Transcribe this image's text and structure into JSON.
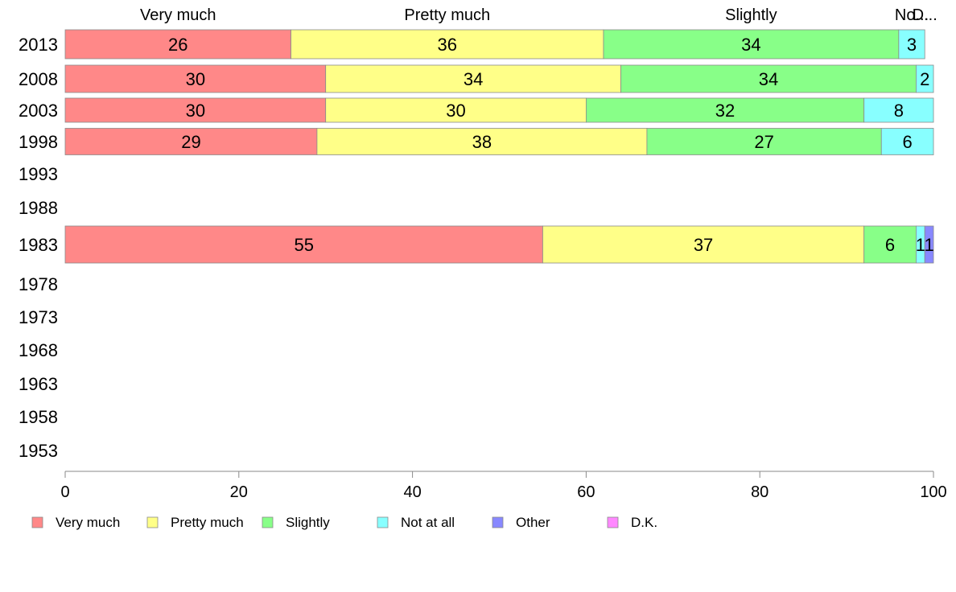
{
  "chart_data": {
    "type": "bar",
    "orientation": "horizontal",
    "stacked": true,
    "years": [
      "2013",
      "2008",
      "2003",
      "1998",
      "1993",
      "1988",
      "1983",
      "1978",
      "1973",
      "1968",
      "1963",
      "1958",
      "1953"
    ],
    "series": [
      {
        "name": "Very much",
        "color": "#ff8888",
        "values": [
          26,
          30,
          30,
          29,
          null,
          null,
          55,
          null,
          null,
          null,
          null,
          null,
          null
        ],
        "labels": [
          "26",
          "30",
          "30",
          "29",
          "",
          "",
          "55",
          "",
          "",
          "",
          "",
          "",
          ""
        ]
      },
      {
        "name": "Pretty much",
        "color": "#ffff88",
        "values": [
          36,
          34,
          30,
          38,
          null,
          null,
          37,
          null,
          null,
          null,
          null,
          null,
          null
        ],
        "labels": [
          "36",
          "34",
          "30",
          "38",
          "",
          "",
          "37",
          "",
          "",
          "",
          "",
          "",
          ""
        ]
      },
      {
        "name": "Slightly",
        "color": "#88ff88",
        "values": [
          34,
          34,
          32,
          27,
          null,
          null,
          6,
          null,
          null,
          null,
          null,
          null,
          null
        ],
        "labels": [
          "34",
          "34",
          "32",
          "27",
          "",
          "",
          "6",
          "",
          "",
          "",
          "",
          "",
          ""
        ]
      },
      {
        "name": "Not at all",
        "color": "#88ffff",
        "values": [
          3,
          2,
          8,
          6,
          null,
          null,
          1,
          null,
          null,
          null,
          null,
          null,
          null
        ],
        "labels": [
          "3",
          "2",
          "8",
          "6",
          "",
          "",
          "1",
          "",
          "",
          "",
          "",
          "",
          ""
        ]
      },
      {
        "name": "Other",
        "color": "#8888ff",
        "values": [
          0,
          0,
          0,
          0,
          null,
          null,
          1,
          null,
          null,
          null,
          null,
          null,
          null
        ],
        "labels": [
          "",
          "",
          "",
          "",
          "",
          "",
          "1",
          "",
          "",
          "",
          "",
          "",
          ""
        ]
      },
      {
        "name": "D.K.",
        "color": "#ff88ff",
        "values": [
          0,
          0,
          0,
          0,
          null,
          null,
          0,
          null,
          null,
          null,
          null,
          null,
          null
        ],
        "labels": [
          "",
          "",
          "",
          "",
          "",
          "",
          "",
          "",
          "",
          "",
          "",
          "",
          ""
        ]
      }
    ],
    "top_labels": [
      "Very much",
      "Pretty much",
      "Slightly",
      "No...",
      "D..."
    ],
    "xlim": [
      0,
      100
    ],
    "xticks": [
      0,
      20,
      40,
      60,
      80,
      100
    ],
    "title": "",
    "xlabel": "",
    "ylabel": "",
    "grid": false,
    "legend": "bottom"
  }
}
